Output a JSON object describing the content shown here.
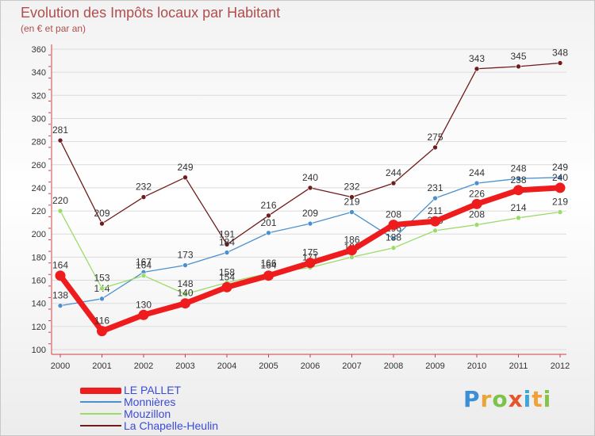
{
  "title": "Evolution des Impôts locaux par Habitant",
  "subtitle": "(en € et par an)",
  "brand": [
    "P",
    "r",
    "o",
    "x",
    "i",
    "t",
    "i"
  ],
  "chart_data": {
    "type": "line",
    "x": [
      "2000",
      "2001",
      "2002",
      "2003",
      "2004",
      "2005",
      "2006",
      "2007",
      "2008",
      "2009",
      "2010",
      "2011",
      "2012"
    ],
    "ylim": [
      100,
      360
    ],
    "yticks": [
      100,
      120,
      140,
      160,
      180,
      200,
      220,
      240,
      260,
      280,
      300,
      320,
      340,
      360
    ],
    "xlabel": "",
    "ylabel": "",
    "series": [
      {
        "name": "La Chapelle-Heulin",
        "color": "#6e1c1c",
        "values": [
          281,
          209,
          232,
          249,
          191,
          216,
          240,
          232,
          244,
          275,
          343,
          345,
          348
        ]
      },
      {
        "name": "Monnières",
        "color": "#4a90cf",
        "values": [
          138,
          144,
          167,
          173,
          184,
          201,
          209,
          219,
          196,
          231,
          244,
          248,
          249
        ]
      },
      {
        "name": "Mouzillon",
        "color": "#9bdb6a",
        "values": [
          220,
          153,
          164,
          148,
          158,
          166,
          171,
          180,
          188,
          203,
          208,
          214,
          219
        ]
      },
      {
        "name": "LE PALLET",
        "color": "#ee1c1c",
        "values": [
          164,
          116,
          130,
          140,
          154,
          164,
          175,
          186,
          208,
          211,
          226,
          238,
          240
        ]
      }
    ]
  },
  "legend": [
    {
      "label": "LE PALLET",
      "color": "#ee1c1c"
    },
    {
      "label": "Monnières",
      "color": "#4a90cf"
    },
    {
      "label": "Mouzillon",
      "color": "#9bdb6a"
    },
    {
      "label": "La Chapelle-Heulin",
      "color": "#6e1c1c"
    }
  ]
}
